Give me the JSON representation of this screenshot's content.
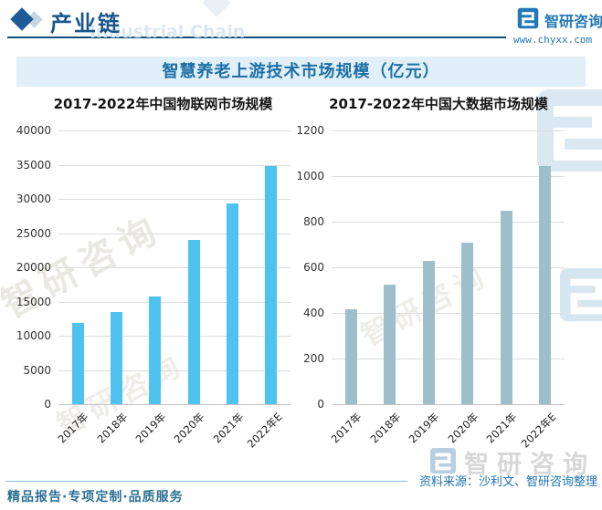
{
  "header": {
    "section_title": "产业链",
    "section_title_en": "Industrial Chain",
    "brand_name": "智研咨询",
    "url": "www.chyxx.com"
  },
  "banner": {
    "title": "智慧养老上游技术市场规模（亿元）"
  },
  "chart_data": [
    {
      "type": "bar",
      "title": "2017-2022年中国物联网市场规模",
      "categories": [
        "2017年",
        "2018年",
        "2019年",
        "2020年",
        "2021年",
        "2022年E"
      ],
      "values": [
        11900,
        13500,
        15800,
        24000,
        29300,
        34800
      ],
      "unit": "亿元",
      "xlabel": "",
      "ylabel": "",
      "ylim": [
        0,
        40000
      ],
      "ytick_step": 5000,
      "grid": true,
      "legend": false,
      "x_tick_rotation": -45,
      "bar_color": "#4ec3f0"
    },
    {
      "type": "bar",
      "title": "2017-2022年中国大数据市场规模",
      "categories": [
        "2017年",
        "2018年",
        "2019年",
        "2020年",
        "2021年",
        "2022年E"
      ],
      "values": [
        415,
        525,
        630,
        710,
        850,
        1045
      ],
      "unit": "亿元",
      "xlabel": "",
      "ylabel": "",
      "ylim": [
        0,
        1200
      ],
      "ytick_step": 200,
      "grid": true,
      "legend": false,
      "x_tick_rotation": -45,
      "bar_color": "#9dbecb"
    }
  ],
  "footer": {
    "source_label": "资料来源：沙利文、智研咨询整理",
    "tagline": "精品报告·专项定制·品质服务"
  },
  "watermarks": {
    "brand_cn": "智研咨询",
    "brand_en": "Industrial Chain"
  },
  "colors": {
    "header_dark_blue": "#19568c",
    "brand_blue": "#2278b5",
    "banner_bg": "#e0eff8",
    "banner_text": "#1d6fa6",
    "bar_left": "#4ec3f0",
    "bar_right": "#9dbecb",
    "gridline": "#dcdcdc",
    "footer_teal": "#2c7094",
    "source_blue": "#2176ae"
  }
}
